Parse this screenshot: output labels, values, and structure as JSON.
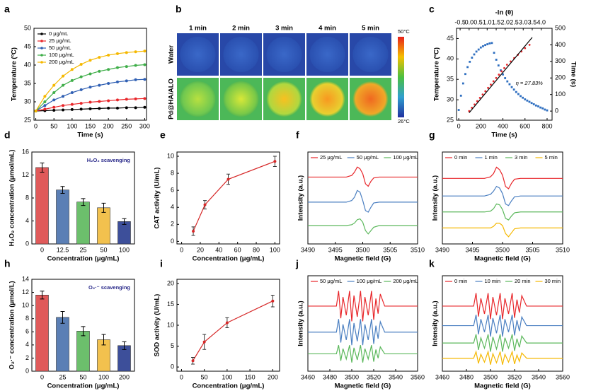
{
  "chart_data": [
    {
      "label": "a",
      "type": "line",
      "x_label": "Time (s)",
      "y_label": "Temperature (ºC)",
      "legend": "upper left",
      "markers": true,
      "x": [
        0,
        25,
        50,
        75,
        100,
        125,
        150,
        175,
        200,
        225,
        250,
        275,
        300
      ],
      "xlim": [
        -5,
        305
      ],
      "xticks": [
        0,
        50,
        100,
        150,
        200,
        250,
        300
      ],
      "ylim": [
        25,
        50
      ],
      "yticks": [
        25,
        30,
        35,
        40,
        45,
        50
      ],
      "series": [
        {
          "name": "0 μg/mL",
          "color": "#000000",
          "values": [
            27.5,
            27.6,
            27.7,
            27.8,
            27.9,
            28.0,
            28.1,
            28.2,
            28.3,
            28.3,
            28.4,
            28.4,
            28.5
          ]
        },
        {
          "name": "25 μg/mL",
          "color": "#e8262a",
          "values": [
            27.5,
            28,
            28.5,
            29,
            29.3,
            29.6,
            29.9,
            30.1,
            30.3,
            30.5,
            30.7,
            30.8,
            30.9
          ]
        },
        {
          "name": "50 μg/mL",
          "color": "#2f5fb3",
          "values": [
            27.5,
            29,
            30.5,
            31.5,
            32.5,
            33.3,
            34,
            34.5,
            35,
            35.4,
            35.7,
            36,
            36.1
          ]
        },
        {
          "name": "100 μg/mL",
          "color": "#3fae49",
          "values": [
            27.5,
            30,
            32.5,
            34.5,
            35.8,
            36.8,
            37.6,
            38.3,
            38.8,
            39.3,
            39.6,
            39.9,
            40.1
          ]
        },
        {
          "name": "200 μg/mL",
          "color": "#f5b800",
          "values": [
            27.5,
            31.5,
            34.5,
            37,
            38.8,
            40.2,
            41.3,
            42.1,
            42.7,
            43.1,
            43.4,
            43.6,
            43.8
          ]
        }
      ]
    },
    {
      "label": "b",
      "type": "image",
      "columns": [
        "1 min",
        "2 min",
        "3 min",
        "4 min",
        "5 min"
      ],
      "rows": [
        "Water",
        "Pd@HA/ALO"
      ],
      "colorbar_labels": [
        "50°C",
        "26°C"
      ]
    },
    {
      "label": "c",
      "type": "line",
      "x_label": "Time (s)",
      "y_label": "Temperature (ºC)",
      "x2_label": "-ln (θ)",
      "y2_label": "Time (s)",
      "annotation": "η = 27.83%",
      "xlim": [
        -20,
        845
      ],
      "xticks": [
        0,
        200,
        400,
        600,
        800
      ],
      "ylim": [
        25,
        47.5
      ],
      "yticks": [
        25,
        30,
        35,
        40,
        45
      ],
      "x2lim": [
        -0.7,
        4.6
      ],
      "x2ticks": [
        -0.5,
        {
          "value": 0,
          "label": "0.0"
        },
        0.5,
        {
          "value": 1,
          "label": "1.0"
        },
        1.5,
        {
          "value": 2,
          "label": "2.0"
        },
        2.5,
        {
          "value": 3,
          "label": "3.0"
        },
        3.5,
        {
          "value": 4,
          "label": "4.0"
        }
      ],
      "y2lim": [
        -55,
        500
      ],
      "y2ticks": [
        0,
        100,
        200,
        300,
        400,
        500
      ],
      "series": [
        {
          "color": "#2f6fc0",
          "style": "markers",
          "x": [
            0,
            20,
            40,
            60,
            80,
            100,
            120,
            140,
            160,
            180,
            200,
            220,
            240,
            260,
            280,
            300,
            320,
            340,
            360,
            380,
            400,
            420,
            440,
            460,
            480,
            500,
            520,
            540,
            560,
            580,
            600,
            620,
            640,
            660,
            680,
            700,
            720,
            740,
            760,
            780,
            800
          ],
          "values": [
            27.5,
            31,
            34,
            36.3,
            38,
            39.3,
            40.3,
            41.1,
            41.8,
            42.3,
            42.8,
            43.1,
            43.4,
            43.6,
            43.8,
            43.9,
            41.5,
            39.8,
            38.4,
            37.2,
            36.2,
            35.3,
            34.5,
            33.8,
            33.1,
            32.5,
            31.9,
            31.4,
            30.9,
            30.5,
            30.1,
            29.8,
            29.5,
            29.2,
            28.9,
            28.6,
            28.4,
            28.1,
            27.9,
            27.6,
            27.4
          ]
        },
        {
          "color": "#e8262a",
          "style": "markers",
          "axis": "y2",
          "x_axis": "x2",
          "x": [
            0,
            0.15,
            0.3,
            0.45,
            0.6,
            0.75,
            0.9,
            1.05,
            1.2,
            1.35,
            1.5,
            1.65,
            1.8,
            1.95,
            2.1,
            2.3,
            2.5,
            2.7,
            2.9,
            3.1,
            3.35
          ],
          "values": [
            0,
            20,
            40,
            60,
            80,
            100,
            120,
            140,
            160,
            180,
            200,
            220,
            240,
            260,
            280,
            300,
            320,
            340,
            360,
            380,
            400
          ]
        },
        {
          "color": "#000000",
          "style": "line",
          "axis": "y2",
          "x_axis": "x2",
          "x": [
            0,
            3.5
          ],
          "values": [
            -10,
            445
          ]
        }
      ]
    },
    {
      "label": "d",
      "type": "bar",
      "x_label": "Concentration (μg/mL)",
      "y_label": "H₂O₂ concentration (μmol/mL)",
      "annotation": "H₂O₂ scavenging",
      "categories": [
        "0",
        "12.5",
        "25",
        "50",
        "100"
      ],
      "values": [
        13.3,
        9.4,
        7.3,
        6.3,
        3.9
      ],
      "errors": [
        0.8,
        0.6,
        0.6,
        0.8,
        0.5
      ],
      "colors": [
        "#e05a5a",
        "#5b7fb5",
        "#6cbf6c",
        "#f2c14e",
        "#3d4f9a"
      ],
      "ylim": [
        0,
        16
      ],
      "yticks": [
        0,
        4,
        8,
        12,
        16
      ]
    },
    {
      "label": "e",
      "type": "line",
      "x_label": "Concentration (μg/mL)",
      "y_label": "CAT activity (U/mL)",
      "markers": true,
      "x": [
        12.5,
        25,
        50,
        100
      ],
      "xlim": [
        -5,
        105
      ],
      "xticks": [
        0,
        20,
        40,
        60,
        80,
        100
      ],
      "ylim": [
        -0.3,
        10.5
      ],
      "yticks": [
        0,
        2,
        4,
        6,
        8,
        10
      ],
      "series": [
        {
          "color": "#d62828",
          "values": [
            1.2,
            4.3,
            7.3,
            9.4
          ],
          "errors": [
            0.5,
            0.5,
            0.6,
            0.6
          ]
        }
      ]
    },
    {
      "label": "f",
      "type": "line",
      "x_label": "Magnetic field (G)",
      "y_label": "Intensity (a.u.)",
      "legend": "top",
      "x": [
        3490,
        3494,
        3497,
        3498,
        3498.5,
        3499,
        3499.5,
        3500,
        3500.5,
        3501,
        3501.5,
        3502,
        3503,
        3506,
        3510
      ],
      "xlim": [
        3490,
        3510
      ],
      "xticks": [
        3490,
        3495,
        3500,
        3505,
        3510
      ],
      "ylim": [
        0,
        11
      ],
      "yticks": [],
      "series": [
        {
          "name": "25 μg/mL",
          "color": "#e8262a",
          "values": [
            8,
            8,
            8,
            8.2,
            8.6,
            9.2,
            9,
            8.4,
            7.2,
            6.9,
            7.5,
            7.9,
            8,
            8,
            8
          ]
        },
        {
          "name": "50 μg/mL",
          "color": "#4a7fc1",
          "values": [
            5,
            5,
            5,
            5.2,
            5.6,
            6.4,
            6.2,
            5.2,
            4,
            3.8,
            4.4,
            4.9,
            5,
            5,
            5
          ]
        },
        {
          "name": "100 μg/mL",
          "color": "#5cb85c",
          "values": [
            2.2,
            2.2,
            2.2,
            2.3,
            2.5,
            2.9,
            3,
            2.6,
            1.6,
            1.2,
            1.6,
            2,
            2.2,
            2.2,
            2.2
          ]
        }
      ]
    },
    {
      "label": "g",
      "type": "line",
      "x_label": "Magnetic field (G)",
      "y_label": "Intensity (a.u.)",
      "legend": "top",
      "x": [
        3490,
        3494,
        3497,
        3498,
        3498.5,
        3499,
        3499.5,
        3500,
        3500.5,
        3501,
        3501.5,
        3502,
        3503,
        3506,
        3510
      ],
      "xlim": [
        3490,
        3510
      ],
      "xticks": [
        3490,
        3495,
        3500,
        3505,
        3510
      ],
      "ylim": [
        0,
        11.5
      ],
      "yticks": [],
      "series": [
        {
          "name": "0 min",
          "color": "#e8262a",
          "values": [
            8.2,
            8.2,
            8.2,
            8.4,
            8.8,
            9.6,
            9.3,
            8.6,
            7.2,
            6.9,
            7.6,
            8.1,
            8.2,
            8.2,
            8.2
          ]
        },
        {
          "name": "1 min",
          "color": "#4a7fc1",
          "values": [
            6,
            6,
            6,
            6.2,
            6.6,
            7.2,
            7,
            6.3,
            5,
            4.8,
            5.4,
            5.9,
            6,
            6,
            6
          ]
        },
        {
          "name": "3 min",
          "color": "#5cb85c",
          "values": [
            4,
            4,
            4,
            4.1,
            4.4,
            5,
            4.9,
            4.3,
            3.2,
            3,
            3.5,
            3.9,
            4,
            4,
            4
          ]
        },
        {
          "name": "5 min",
          "color": "#f5b800",
          "values": [
            2,
            2,
            2,
            2,
            2.2,
            2.6,
            2.6,
            2.3,
            1.3,
            0.9,
            1.4,
            1.9,
            2,
            2,
            2
          ]
        }
      ]
    },
    {
      "label": "h",
      "type": "bar",
      "x_label": "Concentration (μg/mL)",
      "y_label": "O₂·⁻ concentration (μmol/L)",
      "annotation": "O₂·⁻ scavenging",
      "categories": [
        "0",
        "25",
        "50",
        "100",
        "200"
      ],
      "values": [
        11.6,
        8.2,
        6.1,
        4.8,
        3.9
      ],
      "errors": [
        0.6,
        0.9,
        0.7,
        0.8,
        0.6
      ],
      "colors": [
        "#e05a5a",
        "#5b7fb5",
        "#6cbf6c",
        "#f2c14e",
        "#3d4f9a"
      ],
      "ylim": [
        0,
        14
      ],
      "yticks": [
        0,
        2,
        4,
        6,
        8,
        10,
        12,
        14
      ]
    },
    {
      "label": "i",
      "type": "line",
      "x_label": "Concentration (μg/mL)",
      "y_label": "SOD activity (U/mL)",
      "markers": true,
      "x": [
        25,
        50,
        100,
        200
      ],
      "xlim": [
        -10,
        215
      ],
      "xticks": [
        0,
        50,
        100,
        150,
        200
      ],
      "ylim": [
        -1,
        21
      ],
      "yticks": [
        0,
        5,
        10,
        15,
        20
      ],
      "series": [
        {
          "color": "#d62828",
          "values": [
            1.5,
            6.0,
            10.6,
            15.8
          ],
          "errors": [
            0.8,
            1.8,
            1.2,
            1.4
          ]
        }
      ]
    },
    {
      "label": "j",
      "type": "line",
      "x_label": "Magnetic field (G)",
      "y_label": "Intensity (a.u.)",
      "legend": "top",
      "x": [
        3460,
        3480,
        3486,
        3488,
        3490,
        3492,
        3495,
        3498,
        3500,
        3502,
        3505,
        3508,
        3510,
        3512,
        3515,
        3518,
        3520,
        3522,
        3524,
        3526,
        3530,
        3540,
        3560
      ],
      "xlim": [
        3460,
        3560
      ],
      "xticks": [
        3460,
        3480,
        3500,
        3520,
        3540,
        3560
      ],
      "ylim": [
        -1,
        21
      ],
      "yticks": [],
      "series": [
        {
          "name": "50 μg/mL",
          "color": "#e8262a",
          "values": [
            14,
            14,
            14,
            17.5,
            11.2,
            16.1,
            11.9,
            17.5,
            10.5,
            16.45,
            11.55,
            17.5,
            10.5,
            16.1,
            11.9,
            17.5,
            10.85,
            15.75,
            12.25,
            16.8,
            14,
            14,
            14
          ]
        },
        {
          "name": "100 μg/mL",
          "color": "#4a7fc1",
          "values": [
            8,
            8,
            8,
            11,
            5.6,
            9.8,
            6.2,
            11,
            5,
            10.1,
            5.9,
            11,
            5,
            9.8,
            6.2,
            11,
            5.3,
            9.5,
            6.5,
            10.4,
            8,
            8,
            8
          ]
        },
        {
          "name": "200 μg/mL",
          "color": "#5cb85c",
          "values": [
            3,
            3,
            3,
            5,
            1.4,
            4.2,
            1.8,
            5,
            1,
            4.4,
            1.6,
            5,
            1,
            4.2,
            1.8,
            5,
            1.2,
            4,
            2,
            4.6,
            3,
            3,
            3
          ]
        }
      ]
    },
    {
      "label": "k",
      "type": "line",
      "x_label": "Magnetic field (G)",
      "y_label": "Intensity (a.u.)",
      "legend": "top",
      "x": [
        3460,
        3480,
        3486,
        3488,
        3490,
        3492,
        3495,
        3498,
        3500,
        3502,
        3505,
        3508,
        3510,
        3512,
        3515,
        3518,
        3520,
        3522,
        3524,
        3526,
        3530,
        3540,
        3560
      ],
      "xlim": [
        3460,
        3560
      ],
      "xticks": [
        3460,
        3480,
        3500,
        3520,
        3540,
        3560
      ],
      "ylim": [
        -1,
        21
      ],
      "yticks": [],
      "series": [
        {
          "name": "0 min",
          "color": "#e8262a",
          "values": [
            14,
            14,
            14,
            17,
            11.6,
            15.8,
            12.2,
            17,
            11,
            16.1,
            11.9,
            17,
            11,
            15.8,
            12.2,
            17,
            11.3,
            15.5,
            12.5,
            16.4,
            14,
            14,
            14
          ]
        },
        {
          "name": "10 min",
          "color": "#4a7fc1",
          "values": [
            9.5,
            9.5,
            9.5,
            12,
            7.5,
            11,
            8,
            12,
            7,
            11.25,
            7.75,
            12,
            7,
            11,
            8,
            12,
            7.25,
            10.75,
            8.25,
            11.5,
            9.5,
            9.5,
            9.5
          ]
        },
        {
          "name": "20 min",
          "color": "#5cb85c",
          "values": [
            5.5,
            5.5,
            5.5,
            7.5,
            3.9,
            6.7,
            4.3,
            7.5,
            3.5,
            6.9,
            4.1,
            7.5,
            3.5,
            6.7,
            4.3,
            7.5,
            3.7,
            6.5,
            4.5,
            7.1,
            5.5,
            5.5,
            5.5
          ]
        },
        {
          "name": "30 min",
          "color": "#f5b800",
          "values": [
            2,
            2,
            2,
            3.5,
            0.8,
            2.9,
            1.1,
            3.5,
            0.5,
            3.05,
            0.95,
            3.5,
            0.5,
            2.9,
            1.1,
            3.5,
            0.65,
            2.75,
            1.25,
            3.2,
            2,
            2,
            2
          ]
        }
      ]
    }
  ]
}
